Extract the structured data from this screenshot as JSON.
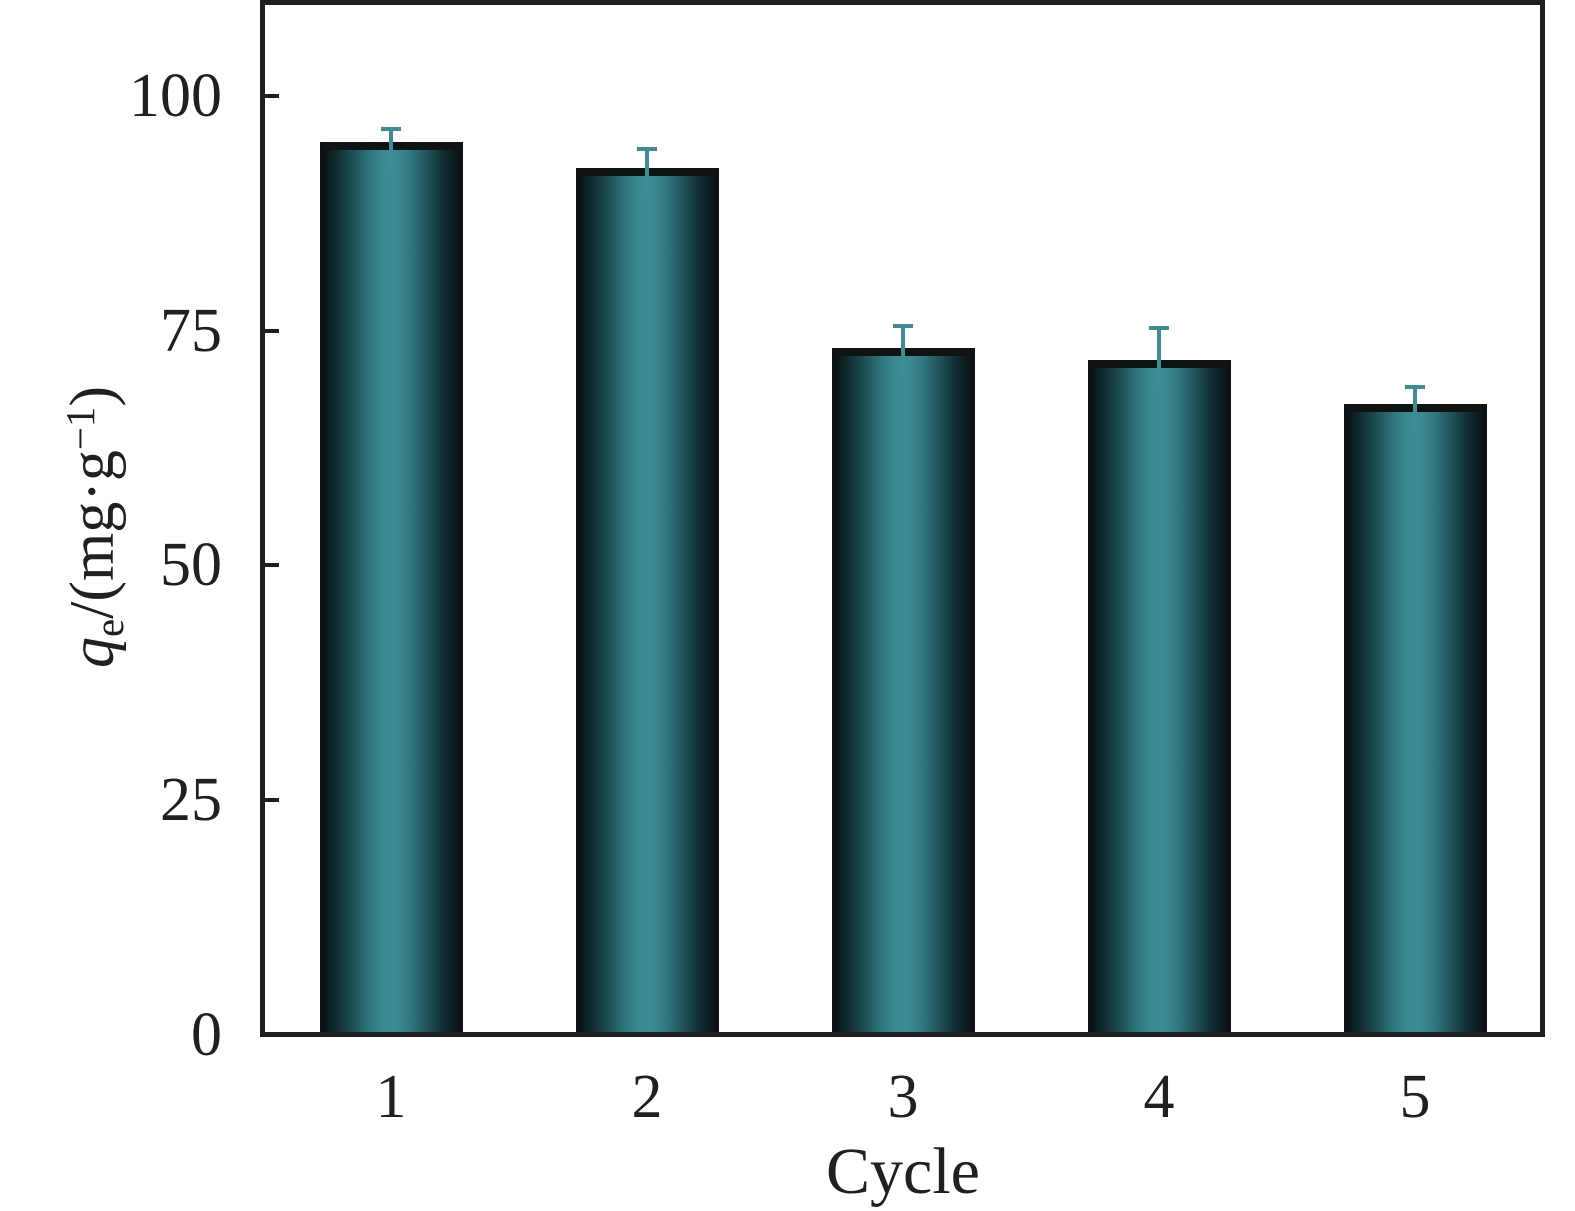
{
  "figure": {
    "background": "#ffffff",
    "frame_color": "#1e1e1e"
  },
  "y_axis": {
    "title_q": "q",
    "title_sub": "e",
    "title_mid": "/(mg·g",
    "title_sup": "−1",
    "title_end": ")"
  },
  "x_axis": {
    "title": "Cycle"
  },
  "chart_data": {
    "type": "bar",
    "title": "",
    "xlabel": "Cycle",
    "ylabel": "qe/(mg·g−1)",
    "categories": [
      "1",
      "2",
      "3",
      "4",
      "5"
    ],
    "values": [
      95.1,
      92.3,
      73.2,
      71.9,
      67.2
    ],
    "errors": [
      1.4,
      2.0,
      2.3,
      3.4,
      1.8
    ],
    "ylim": [
      0,
      110
    ],
    "yticks": [
      0,
      25,
      50,
      75,
      100
    ],
    "ytick_labels": [
      "0",
      "25",
      "50",
      "75",
      "100"
    ],
    "xtick_labels": [
      "1",
      "2",
      "3",
      "4",
      "5"
    ],
    "grid": false,
    "legend": null,
    "bar_color_center": "#3a8c92",
    "bar_color_edge": "#0b1517",
    "bar_outline_color": "#101314",
    "error_bar_color": "#3f8d94"
  }
}
